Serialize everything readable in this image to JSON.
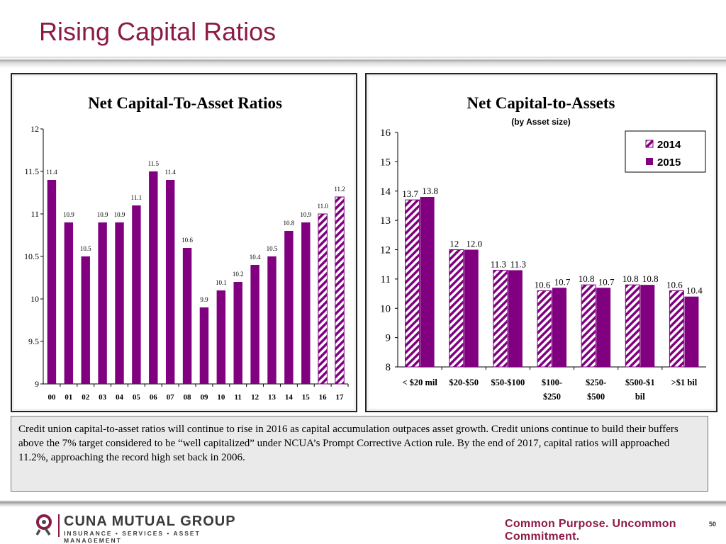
{
  "slide": {
    "title": "Rising Capital Ratios",
    "note": "Credit union capital-to-asset ratios will continue to rise in 2016 as capital accumulation outpaces asset growth. Credit unions continue to build their buffers above the 7% target considered to be “well capitalized” under NCUA’s Prompt Corrective Action rule. By the end of 2017, capital ratios will approached 11.2%, approaching the record high set back in 2006.",
    "tagline": "Common Purpose. Uncommon Commitment.",
    "page_number": "50",
    "brand_color": "#8c1a46",
    "logo": {
      "name": "CUNA MUTUAL GROUP",
      "subtitle": "INSURANCE • SERVICES • ASSET MANAGEMENT"
    }
  },
  "chart_data": [
    {
      "type": "bar",
      "title": "Net Capital-To-Asset Ratios",
      "categories": [
        "00",
        "01",
        "02",
        "03",
        "04",
        "05",
        "06",
        "07",
        "08",
        "09",
        "10",
        "11",
        "12",
        "13",
        "14",
        "15",
        "16",
        "17"
      ],
      "values": [
        11.4,
        10.9,
        10.5,
        10.9,
        10.9,
        11.1,
        11.5,
        11.4,
        10.6,
        9.9,
        10.1,
        10.2,
        10.4,
        10.5,
        10.8,
        10.9,
        11.0,
        11.2
      ],
      "value_labels": [
        "11.4",
        "10.9",
        "10.5",
        "10.9",
        "10.9",
        "11.1",
        "11.5",
        "11.4",
        "10.6",
        "9.9",
        "10.1",
        "10.2",
        "10.4",
        "10.5",
        "10.8",
        "10.9",
        "11.0",
        "11.2"
      ],
      "forecast_categories": [
        "16",
        "17"
      ],
      "ylim": [
        9,
        12
      ],
      "yticks": [
        "9",
        "9.5",
        "10",
        "10.5",
        "11",
        "11.5",
        "12"
      ],
      "bar_color": "#800080",
      "grid": false
    },
    {
      "type": "bar",
      "title": "Net Capital-to-Assets",
      "subtitle": "(by Asset size)",
      "categories": [
        "< $20 mil",
        "$20-$50",
        "$50-$100",
        "$100-$250",
        "$250-$500",
        "$500-$1 bil",
        ">$1 bil"
      ],
      "category_lines": [
        [
          "< $20 mil"
        ],
        [
          "$20-$50"
        ],
        [
          "$50-$100"
        ],
        [
          "$100-",
          "$250"
        ],
        [
          "$250-",
          "$500"
        ],
        [
          "$500-$1",
          "bil"
        ],
        [
          ">$1 bil"
        ]
      ],
      "series": [
        {
          "name": "2014",
          "values": [
            13.7,
            12.0,
            11.3,
            10.6,
            10.8,
            10.8,
            10.6
          ],
          "labels": [
            "13.7",
            "12",
            "11.3",
            "10.6",
            "10.8",
            "10.8",
            "10.6"
          ],
          "pattern": "hatched"
        },
        {
          "name": "2015",
          "values": [
            13.8,
            12.0,
            11.3,
            10.7,
            10.7,
            10.8,
            10.4
          ],
          "labels": [
            "13.8",
            "12.0",
            "11.3",
            "10.7",
            "10.7",
            "10.8",
            "10.4"
          ],
          "pattern": "solid"
        }
      ],
      "ylim": [
        8,
        16
      ],
      "yticks": [
        "8",
        "9",
        "10",
        "11",
        "12",
        "13",
        "14",
        "15",
        "16"
      ],
      "legend_position": "top-right",
      "bar_color": "#800080",
      "grid": false
    }
  ]
}
